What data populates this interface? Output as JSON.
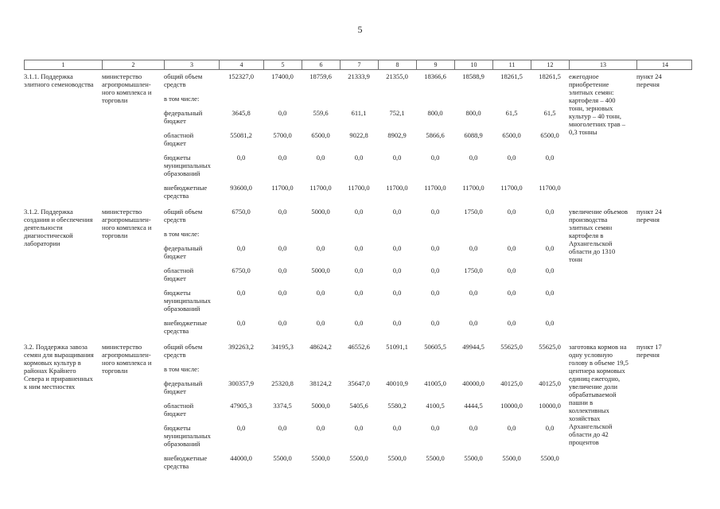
{
  "page": {
    "number": "5"
  },
  "table": {
    "column_numbers": [
      "1",
      "2",
      "3",
      "4",
      "5",
      "6",
      "7",
      "8",
      "9",
      "10",
      "11",
      "12",
      "13",
      "14"
    ],
    "rows": [
      {
        "objective": "3.1.1. Поддержка элитного семеноводства",
        "executor": "министерство агропромышлен­ного комплекса и торговли",
        "funding_rows": [
          {
            "label": "общий объем средств",
            "values": [
              "152327,0",
              "17400,0",
              "18759,6",
              "21333,9",
              "21355,0",
              "18366,6",
              "18588,9",
              "18261,5",
              "18261,5"
            ]
          },
          {
            "label": "в том числе:",
            "values": []
          },
          {
            "label": "федеральный бюджет",
            "values": [
              "3645,8",
              "0,0",
              "559,6",
              "611,1",
              "752,1",
              "800,0",
              "800,0",
              "61,5",
              "61,5"
            ]
          },
          {
            "label": "областной бюджет",
            "values": [
              "55081,2",
              "5700,0",
              "6500,0",
              "9022,8",
              "8902,9",
              "5866,6",
              "6088,9",
              "6500,0",
              "6500,0"
            ]
          },
          {
            "label": "бюджеты муниципальных образований",
            "values": [
              "0,0",
              "0,0",
              "0,0",
              "0,0",
              "0,0",
              "0,0",
              "0,0",
              "0,0",
              "0,0"
            ]
          },
          {
            "label": "внебюджетные средства",
            "values": [
              "93600,0",
              "11700,0",
              "11700,0",
              "11700,0",
              "11700,0",
              "11700,0",
              "11700,0",
              "11700,0",
              "11700,0"
            ]
          }
        ],
        "expected_results": "ежегодное приобретение элитных семян: картофеля – 400 тонн, зерновых культур – 40 тонн, многолетних трав – 0,3 тонны",
        "basis": "пункт 24 перечня"
      },
      {
        "objective": "3.1.2. Поддержка создания и обеспечения деятельности диагностической лаборатории",
        "executor": "министерство агропромышлен­ного комплекса и торговли",
        "funding_rows": [
          {
            "label": "общий объем средств",
            "values": [
              "6750,0",
              "0,0",
              "5000,0",
              "0,0",
              "0,0",
              "0,0",
              "1750,0",
              "0,0",
              "0,0"
            ]
          },
          {
            "label": "в том числе:",
            "values": []
          },
          {
            "label": "федеральный бюджет",
            "values": [
              "0,0",
              "0,0",
              "0,0",
              "0,0",
              "0,0",
              "0,0",
              "0,0",
              "0,0",
              "0,0"
            ]
          },
          {
            "label": "областной бюджет",
            "values": [
              "6750,0",
              "0,0",
              "5000,0",
              "0,0",
              "0,0",
              "0,0",
              "1750,0",
              "0,0",
              "0,0"
            ]
          },
          {
            "label": "бюджеты муниципальных образований",
            "values": [
              "0,0",
              "0,0",
              "0,0",
              "0,0",
              "0,0",
              "0,0",
              "0,0",
              "0,0",
              "0,0"
            ]
          },
          {
            "label": "внебюджетные средства",
            "values": [
              "0,0",
              "0,0",
              "0,0",
              "0,0",
              "0,0",
              "0,0",
              "0,0",
              "0,0",
              "0,0"
            ]
          }
        ],
        "expected_results": "увеличение объемов производства элитных семян картофеля в Архангельской области до 1310 тонн",
        "basis": "пункт 24 перечня"
      },
      {
        "objective": "3.2. Поддержка завоза семян для выращивания кормовых культур в районах Крайнего Севера и приравненных к ним местностях",
        "executor": "министерство агропромышлен­ного комплекса и торговли",
        "funding_rows": [
          {
            "label": "общий объем средств",
            "values": [
              "392263,2",
              "34195,3",
              "48624,2",
              "46552,6",
              "51091,1",
              "50605,5",
              "49944,5",
              "55625,0",
              "55625,0"
            ]
          },
          {
            "label": "в том числе:",
            "values": []
          },
          {
            "label": "федеральный бюджет",
            "values": [
              "300357,9",
              "25320,8",
              "38124,2",
              "35647,0",
              "40010,9",
              "41005,0",
              "40000,0",
              "40125,0",
              "40125,0"
            ]
          },
          {
            "label": "областной бюджет",
            "values": [
              "47905,3",
              "3374,5",
              "5000,0",
              "5405,6",
              "5580,2",
              "4100,5",
              "4444,5",
              "10000,0",
              "10000,0"
            ]
          },
          {
            "label": "бюджеты муниципальных образований",
            "values": [
              "0,0",
              "0,0",
              "0,0",
              "0,0",
              "0,0",
              "0,0",
              "0,0",
              "0,0",
              "0,0"
            ]
          },
          {
            "label": "внебюджетные средства",
            "values": [
              "44000,0",
              "5500,0",
              "5500,0",
              "5500,0",
              "5500,0",
              "5500,0",
              "5500,0",
              "5500,0",
              "5500,0"
            ]
          }
        ],
        "expected_results": "заготовка кормов на одну условную голову в объеме 19,5 центнера кормовых единиц ежегодно, увеличение доли обрабатываемой пашни в коллективных хозяйствах Архангельской области до 42 процентов",
        "basis": "пункт 17 перечня"
      }
    ]
  }
}
